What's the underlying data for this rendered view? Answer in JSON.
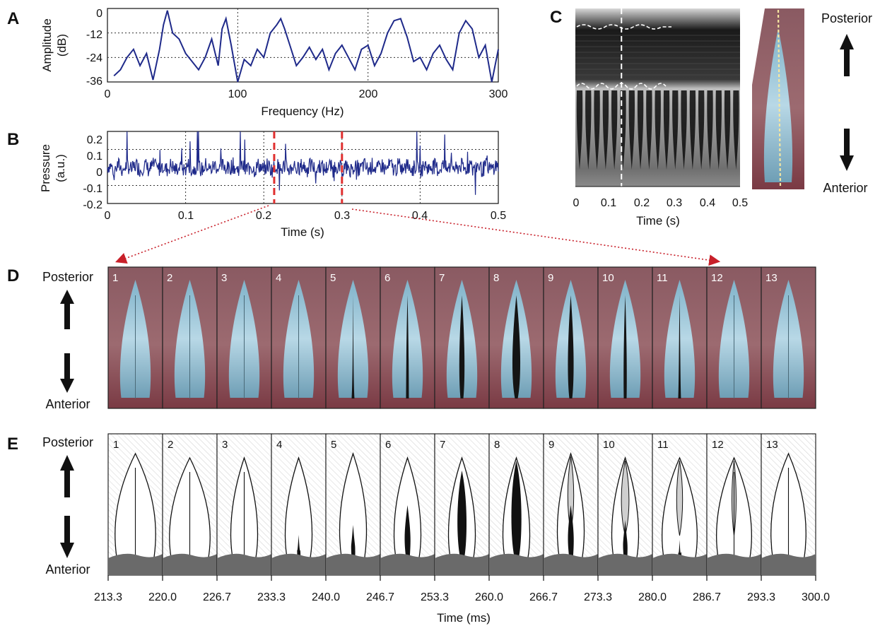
{
  "panels": {
    "A": {
      "label": "A",
      "ylabel_line1": "Amplitude",
      "ylabel_line2": "(dB)",
      "xlabel": "Frequency (Hz)",
      "yticks": [
        "0",
        "-12",
        "-24",
        "-36"
      ],
      "xticks": [
        "0",
        "100",
        "200",
        "300"
      ]
    },
    "B": {
      "label": "B",
      "ylabel_line1": "Pressure",
      "ylabel_line2": "(a.u.)",
      "xlabel": "Time (s)",
      "yticks": [
        "0.2",
        "0.1",
        "0",
        "-0.1",
        "-0.2"
      ],
      "xticks": [
        "0",
        "0.1",
        "0.2",
        "0.3",
        "0.4",
        "0.5"
      ]
    },
    "C": {
      "label": "C",
      "xlabel": "Time (s)",
      "xticks": [
        "0",
        "0.1",
        "0.2",
        "0.3",
        "0.4",
        "0.5"
      ],
      "posterior": "Posterior",
      "anterior": "Anterior"
    },
    "D": {
      "label": "D",
      "posterior": "Posterior",
      "anterior": "Anterior",
      "frames": [
        "1",
        "2",
        "3",
        "4",
        "5",
        "6",
        "7",
        "8",
        "9",
        "10",
        "11",
        "12",
        "13"
      ]
    },
    "E": {
      "label": "E",
      "posterior": "Posterior",
      "anterior": "Anterior",
      "frames": [
        "1",
        "2",
        "3",
        "4",
        "5",
        "6",
        "7",
        "8",
        "9",
        "10",
        "11",
        "12",
        "13"
      ],
      "xlabel": "Time (ms)",
      "xticks": [
        "213.3",
        "220.0",
        "226.7",
        "233.3",
        "240.0",
        "246.7",
        "253.3",
        "260.0",
        "266.7",
        "273.3",
        "280.0",
        "286.7",
        "293.3",
        "300.0"
      ]
    }
  },
  "chart_data": [
    {
      "type": "line",
      "panel": "A",
      "xlabel": "Frequency (Hz)",
      "ylabel": "Amplitude (dB)",
      "xlim": [
        0,
        300
      ],
      "ylim": [
        -36,
        0
      ],
      "grid": true,
      "x": [
        5,
        10,
        15,
        20,
        25,
        30,
        35,
        40,
        43,
        46,
        50,
        55,
        60,
        65,
        70,
        75,
        80,
        85,
        88,
        91,
        95,
        100,
        105,
        110,
        115,
        120,
        125,
        130,
        133,
        136,
        140,
        145,
        150,
        155,
        160,
        165,
        170,
        175,
        180,
        185,
        190,
        195,
        200,
        205,
        210,
        215,
        220,
        225,
        230,
        235,
        240,
        245,
        250,
        255,
        260,
        265,
        270,
        275,
        280,
        285,
        290,
        295,
        300
      ],
      "values": [
        -33,
        -30,
        -24,
        -20,
        -28,
        -22,
        -35,
        -20,
        -8,
        -1,
        -12,
        -15,
        -22,
        -26,
        -30,
        -24,
        -15,
        -28,
        -10,
        -5,
        -18,
        -36,
        -25,
        -28,
        -20,
        -24,
        -12,
        -8,
        -5,
        -10,
        -18,
        -28,
        -24,
        -19,
        -25,
        -20,
        -30,
        -22,
        -18,
        -24,
        -30,
        -20,
        -18,
        -28,
        -22,
        -12,
        -6,
        -5,
        -14,
        -26,
        -24,
        -30,
        -22,
        -18,
        -25,
        -30,
        -12,
        -6,
        -10,
        -24,
        -18,
        -36,
        -20
      ]
    },
    {
      "type": "line",
      "panel": "B",
      "xlabel": "Time (s)",
      "ylabel": "Pressure (a.u.)",
      "xlim": [
        0,
        0.5
      ],
      "ylim": [
        -0.2,
        0.2
      ],
      "grid": true,
      "markers": [
        0.2133,
        0.3
      ]
    },
    {
      "type": "other",
      "panel": "C",
      "xlabel": "Time (s)",
      "xlim": [
        0,
        0.5
      ],
      "marker": 0.14
    }
  ]
}
